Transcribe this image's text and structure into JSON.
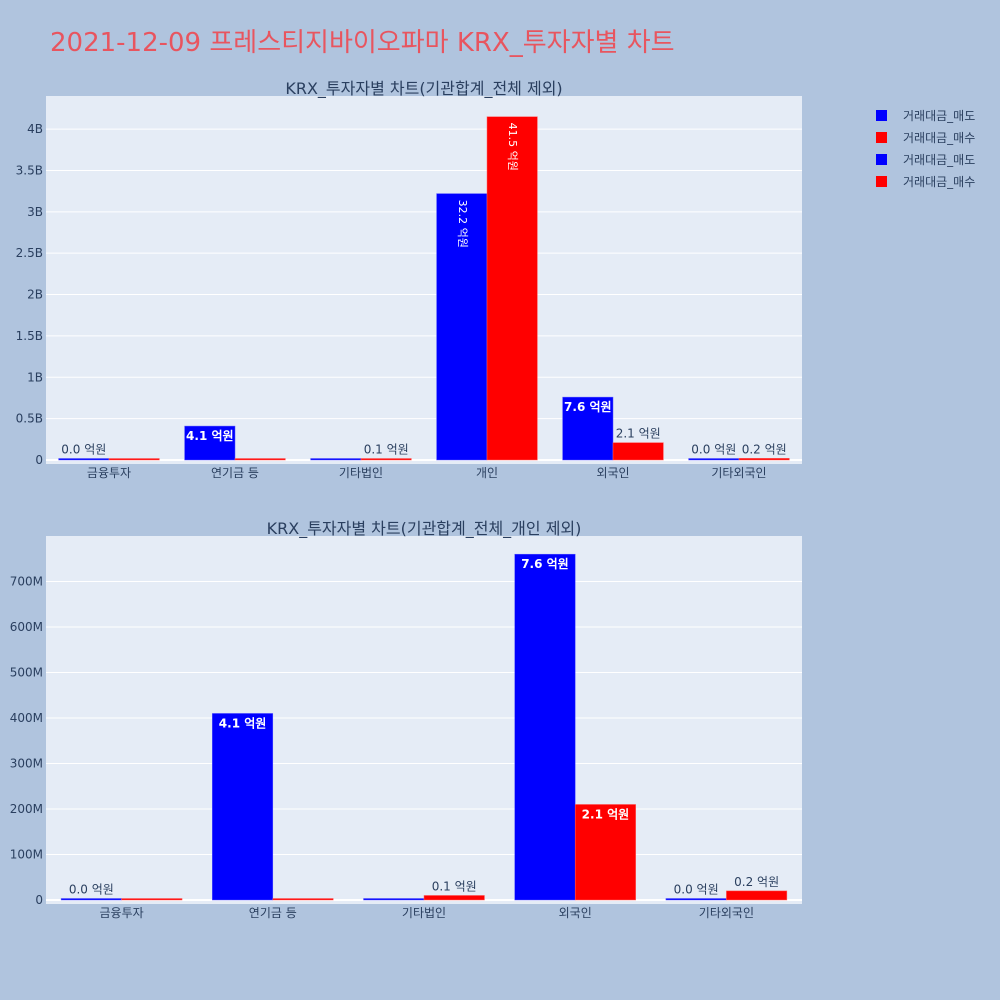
{
  "page_title": "2021-12-09 프레스티지바이오파마 KRX_투자자별 차트",
  "colors": {
    "sell": "#0000ff",
    "buy": "#ff0000",
    "background": "#b0c4de",
    "plot_bg": "#e5ecf6",
    "title": "#e8555f"
  },
  "legend": [
    {
      "label": "거래대금_매도",
      "color": "#0000ff"
    },
    {
      "label": "거래대금_매수",
      "color": "#ff0000"
    },
    {
      "label": "거래대금_매도",
      "color": "#0000ff"
    },
    {
      "label": "거래대금_매수",
      "color": "#ff0000"
    }
  ],
  "chart_data": [
    {
      "type": "bar",
      "title": "KRX_투자자별 차트(기관합계_전체 제외)",
      "categories": [
        "금융투자",
        "연기금 등",
        "기타법인",
        "개인",
        "외국인",
        "기타외국인"
      ],
      "series": [
        {
          "name": "거래대금_매도",
          "color": "#0000ff",
          "values": [
            0,
            410000000,
            0,
            3220000000,
            760000000,
            0
          ],
          "labels": [
            "0.0 억원",
            "4.1 억원",
            "",
            "32.2 억원",
            "7.6 억원",
            "0.0 억원"
          ]
        },
        {
          "name": "거래대금_매수",
          "color": "#ff0000",
          "values": [
            0,
            0,
            10000000,
            4150000000,
            210000000,
            20000000
          ],
          "labels": [
            "",
            "",
            "0.1 억원",
            "41.5 억원",
            "2.1 억원",
            "0.2 억원"
          ]
        }
      ],
      "ylim": [
        0,
        4400000000
      ],
      "yticks": [
        0,
        500000000,
        1000000000,
        1500000000,
        2000000000,
        2500000000,
        3000000000,
        3500000000,
        4000000000
      ],
      "ytick_labels": [
        "0",
        "0.5B",
        "1B",
        "1.5B",
        "2B",
        "2.5B",
        "3B",
        "3.5B",
        "4B"
      ],
      "grid": true,
      "legend_position": "top-right"
    },
    {
      "type": "bar",
      "title": "KRX_투자자별 차트(기관합계_전체_개인 제외)",
      "categories": [
        "금융투자",
        "연기금 등",
        "기타법인",
        "외국인",
        "기타외국인"
      ],
      "series": [
        {
          "name": "거래대금_매도",
          "color": "#0000ff",
          "values": [
            0,
            410000000,
            0,
            760000000,
            0
          ],
          "labels": [
            "0.0 억원",
            "4.1 억원",
            "",
            "7.6 억원",
            "0.0 억원"
          ]
        },
        {
          "name": "거래대금_매수",
          "color": "#ff0000",
          "values": [
            0,
            0,
            10000000,
            210000000,
            20000000
          ],
          "labels": [
            "",
            "",
            "0.1 억원",
            "2.1 억원",
            "0.2 억원"
          ]
        }
      ],
      "ylim": [
        0,
        800000000
      ],
      "yticks": [
        0,
        100000000,
        200000000,
        300000000,
        400000000,
        500000000,
        600000000,
        700000000
      ],
      "ytick_labels": [
        "0",
        "100M",
        "200M",
        "300M",
        "400M",
        "500M",
        "600M",
        "700M"
      ],
      "grid": true,
      "legend_position": "top-right"
    }
  ]
}
